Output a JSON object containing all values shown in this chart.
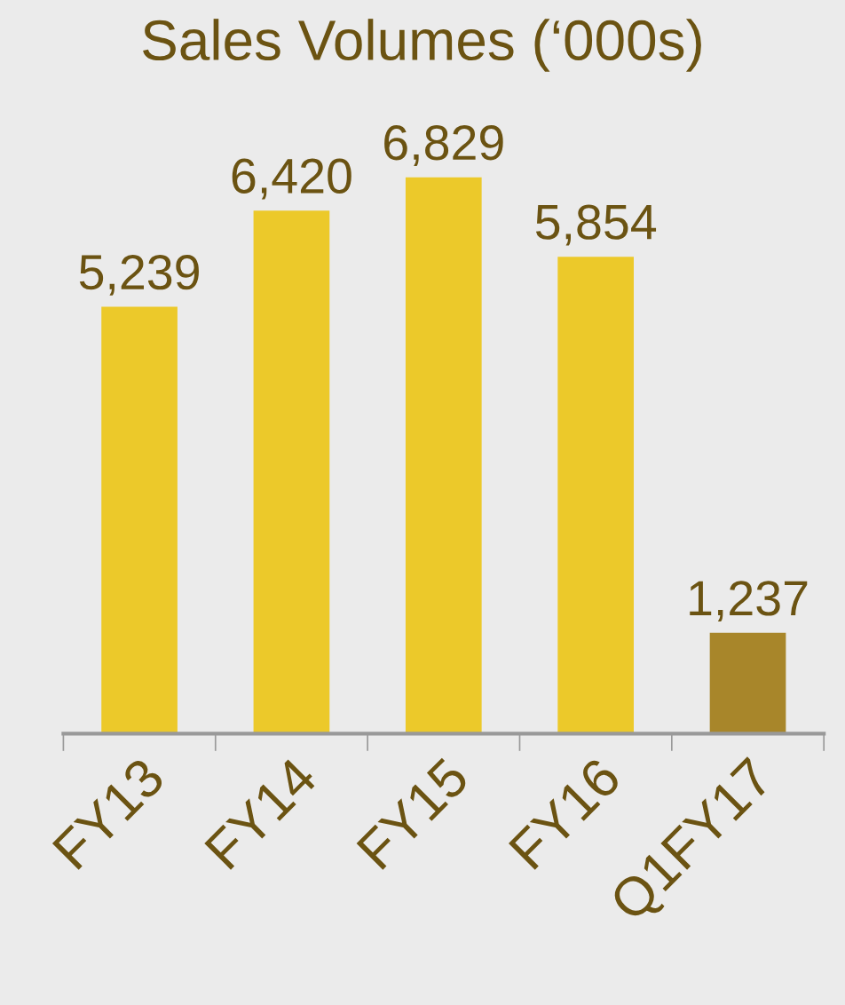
{
  "chart_data": {
    "type": "bar",
    "title": "Sales Volumes (‘000s)",
    "categories": [
      "FY13",
      "FY14",
      "FY15",
      "FY16",
      "Q1FY17"
    ],
    "values": [
      5239,
      6420,
      6829,
      5854,
      1237
    ],
    "colors": [
      "#ecc92a",
      "#ecc92a",
      "#ecc92a",
      "#ecc92a",
      "#a8862a"
    ],
    "value_labels": [
      "5,239",
      "6,420",
      "6,829",
      "5,854",
      "1,237"
    ]
  }
}
